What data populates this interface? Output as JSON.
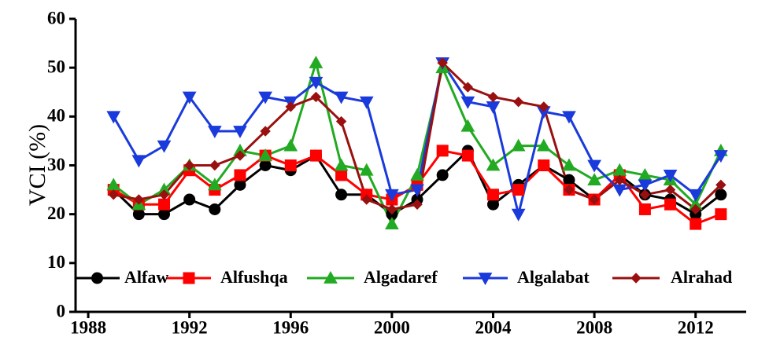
{
  "chart_data": {
    "type": "line",
    "title": "",
    "xlabel": "",
    "ylabel": "VCI (%)",
    "xlim": [
      1987.5,
      2014
    ],
    "ylim": [
      0,
      60
    ],
    "x_ticks": [
      1988,
      1992,
      1996,
      2000,
      2004,
      2008,
      2012
    ],
    "y_ticks": [
      0,
      10,
      20,
      30,
      40,
      50,
      60
    ],
    "x_tick_labels": [
      "1988",
      "1992",
      "1996",
      "2000",
      "2004",
      "2008",
      "2012"
    ],
    "y_tick_labels": [
      "0",
      "10",
      "20",
      "30",
      "40",
      "50",
      "60"
    ],
    "grid": false,
    "legend_position": "bottom-inside",
    "x": [
      1989,
      1990,
      1991,
      1992,
      1993,
      1994,
      1995,
      1996,
      1997,
      1998,
      1999,
      2000,
      2001,
      2002,
      2003,
      2004,
      2005,
      2006,
      2007,
      2008,
      2009,
      2010,
      2011,
      2012,
      2013
    ],
    "series": [
      {
        "name": "Alfaw",
        "color": "#000000",
        "marker": "circle",
        "values": [
          25,
          20,
          20,
          23,
          21,
          26,
          30,
          29,
          32,
          24,
          24,
          20,
          23,
          28,
          33,
          22,
          26,
          30,
          27,
          23,
          28,
          24,
          23,
          20,
          24
        ]
      },
      {
        "name": "Alfushqa",
        "color": "#ff0000",
        "marker": "square",
        "values": [
          25,
          22,
          22,
          29,
          25,
          28,
          32,
          30,
          32,
          28,
          24,
          23,
          26,
          33,
          32,
          24,
          25,
          30,
          25,
          23,
          28,
          21,
          22,
          18,
          20
        ]
      },
      {
        "name": "Algadaref",
        "color": "#22aa22",
        "marker": "triangle-up",
        "values": [
          26,
          22,
          25,
          30,
          26,
          33,
          32,
          34,
          51,
          30,
          29,
          18,
          28,
          50,
          38,
          30,
          34,
          34,
          30,
          27,
          29,
          28,
          27,
          22,
          33
        ]
      },
      {
        "name": "Algalabat",
        "color": "#1a3adb",
        "marker": "triangle-down",
        "values": [
          40,
          31,
          34,
          44,
          37,
          37,
          44,
          43,
          47,
          44,
          43,
          24,
          25,
          51,
          43,
          42,
          20,
          41,
          40,
          30,
          25,
          26,
          28,
          24,
          32
        ]
      },
      {
        "name": "Alrahad",
        "color": "#9a1010",
        "marker": "diamond",
        "values": [
          24,
          23,
          24,
          30,
          30,
          32,
          37,
          42,
          44,
          39,
          23,
          21,
          22,
          51,
          46,
          44,
          43,
          42,
          25,
          23,
          27,
          24,
          25,
          21,
          26
        ]
      }
    ]
  }
}
